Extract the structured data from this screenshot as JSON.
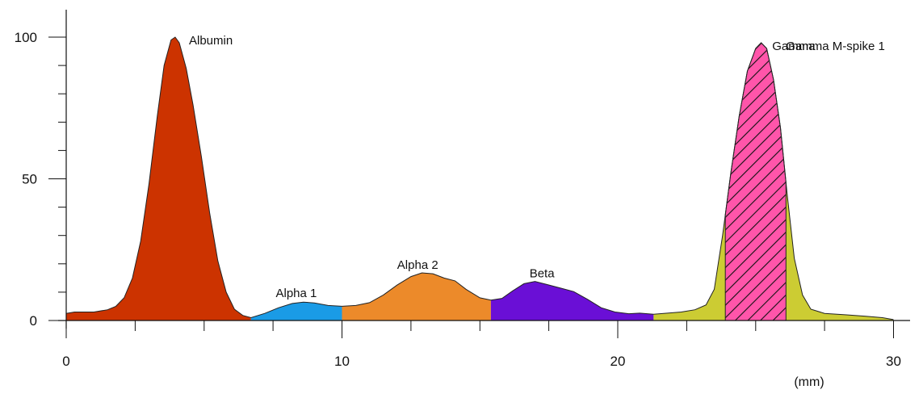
{
  "chart_data": {
    "type": "area",
    "title": "",
    "xlabel": "",
    "ylabel": "",
    "x_unit": "(mm)",
    "xlim": [
      0,
      30.5
    ],
    "ylim": [
      0,
      100
    ],
    "x_ticks": [
      0,
      10,
      20,
      30
    ],
    "y_ticks": [
      0,
      50,
      100
    ],
    "x_minor_step": 2.5,
    "y_minor_step": 10,
    "grid": false,
    "legend": "none",
    "curve": [
      [
        0.0,
        2.5
      ],
      [
        0.3,
        3.0
      ],
      [
        1.0,
        3.0
      ],
      [
        1.5,
        3.8
      ],
      [
        1.8,
        5.0
      ],
      [
        2.1,
        8.0
      ],
      [
        2.4,
        15.0
      ],
      [
        2.7,
        28.0
      ],
      [
        3.0,
        48.0
      ],
      [
        3.3,
        72.0
      ],
      [
        3.55,
        90.0
      ],
      [
        3.8,
        99.0
      ],
      [
        3.95,
        100.0
      ],
      [
        4.1,
        98.0
      ],
      [
        4.35,
        89.0
      ],
      [
        4.6,
        76.0
      ],
      [
        4.9,
        58.0
      ],
      [
        5.2,
        38.0
      ],
      [
        5.5,
        21.0
      ],
      [
        5.8,
        10.0
      ],
      [
        6.1,
        4.0
      ],
      [
        6.4,
        1.8
      ],
      [
        6.7,
        1.0
      ],
      [
        7.2,
        2.5
      ],
      [
        7.7,
        4.5
      ],
      [
        8.2,
        6.0
      ],
      [
        8.6,
        6.5
      ],
      [
        9.0,
        6.2
      ],
      [
        9.5,
        5.3
      ],
      [
        10.0,
        5.0
      ],
      [
        10.5,
        5.3
      ],
      [
        11.0,
        6.3
      ],
      [
        11.5,
        9.0
      ],
      [
        12.0,
        12.5
      ],
      [
        12.5,
        15.5
      ],
      [
        12.9,
        16.8
      ],
      [
        13.3,
        16.5
      ],
      [
        13.7,
        15.0
      ],
      [
        14.1,
        14.0
      ],
      [
        14.5,
        11.0
      ],
      [
        15.0,
        8.0
      ],
      [
        15.4,
        7.2
      ],
      [
        15.8,
        7.8
      ],
      [
        16.2,
        10.5
      ],
      [
        16.6,
        13.0
      ],
      [
        17.0,
        13.8
      ],
      [
        17.4,
        12.8
      ],
      [
        17.9,
        11.5
      ],
      [
        18.4,
        10.2
      ],
      [
        18.9,
        7.5
      ],
      [
        19.4,
        4.5
      ],
      [
        19.9,
        3.0
      ],
      [
        20.4,
        2.4
      ],
      [
        20.8,
        2.6
      ],
      [
        21.3,
        2.2
      ],
      [
        21.8,
        2.6
      ],
      [
        22.3,
        3.0
      ],
      [
        22.8,
        3.8
      ],
      [
        23.2,
        5.5
      ],
      [
        23.5,
        11.0
      ],
      [
        23.8,
        30.0
      ],
      [
        24.1,
        52.0
      ],
      [
        24.4,
        72.0
      ],
      [
        24.7,
        88.0
      ],
      [
        25.0,
        96.0
      ],
      [
        25.2,
        98.0
      ],
      [
        25.4,
        96.0
      ],
      [
        25.65,
        85.0
      ],
      [
        25.9,
        68.0
      ],
      [
        26.15,
        44.0
      ],
      [
        26.4,
        22.0
      ],
      [
        26.7,
        9.0
      ],
      [
        27.0,
        4.0
      ],
      [
        27.5,
        2.5
      ],
      [
        28.3,
        2.0
      ],
      [
        29.0,
        1.5
      ],
      [
        29.6,
        1.0
      ],
      [
        30.0,
        0.3
      ]
    ],
    "fractions": [
      {
        "name": "Albumin",
        "range": [
          0.0,
          6.7
        ],
        "color": "#cc3300"
      },
      {
        "name": "Alpha 1",
        "range": [
          6.7,
          10.0
        ],
        "color": "#1a9be6"
      },
      {
        "name": "Alpha 2",
        "range": [
          10.0,
          15.4
        ],
        "color": "#ec8a2a"
      },
      {
        "name": "Beta",
        "range": [
          15.4,
          21.3
        ],
        "color": "#6a0fd6"
      },
      {
        "name": "Gamma",
        "range": [
          21.3,
          30.0
        ],
        "color": "#cccc33"
      }
    ],
    "m_spike": {
      "name": "Gamma M-spike 1",
      "range": [
        23.9,
        26.1
      ],
      "color": "#ff55aa",
      "pattern": "diagonal-hatch"
    },
    "labels": [
      {
        "text": "Albumin",
        "x": 4.45,
        "y": 97.5
      },
      {
        "text": "Alpha 1",
        "x": 7.6,
        "y": 8.3
      },
      {
        "text": "Alpha 2",
        "x": 12.0,
        "y": 18.2
      },
      {
        "text": "Beta",
        "x": 16.8,
        "y": 15.2
      },
      {
        "text": "Gamma",
        "x": 25.6,
        "y": 95.5
      },
      {
        "text": "Gamma M-spike 1",
        "x": 26.1,
        "y": 95.5
      }
    ]
  }
}
